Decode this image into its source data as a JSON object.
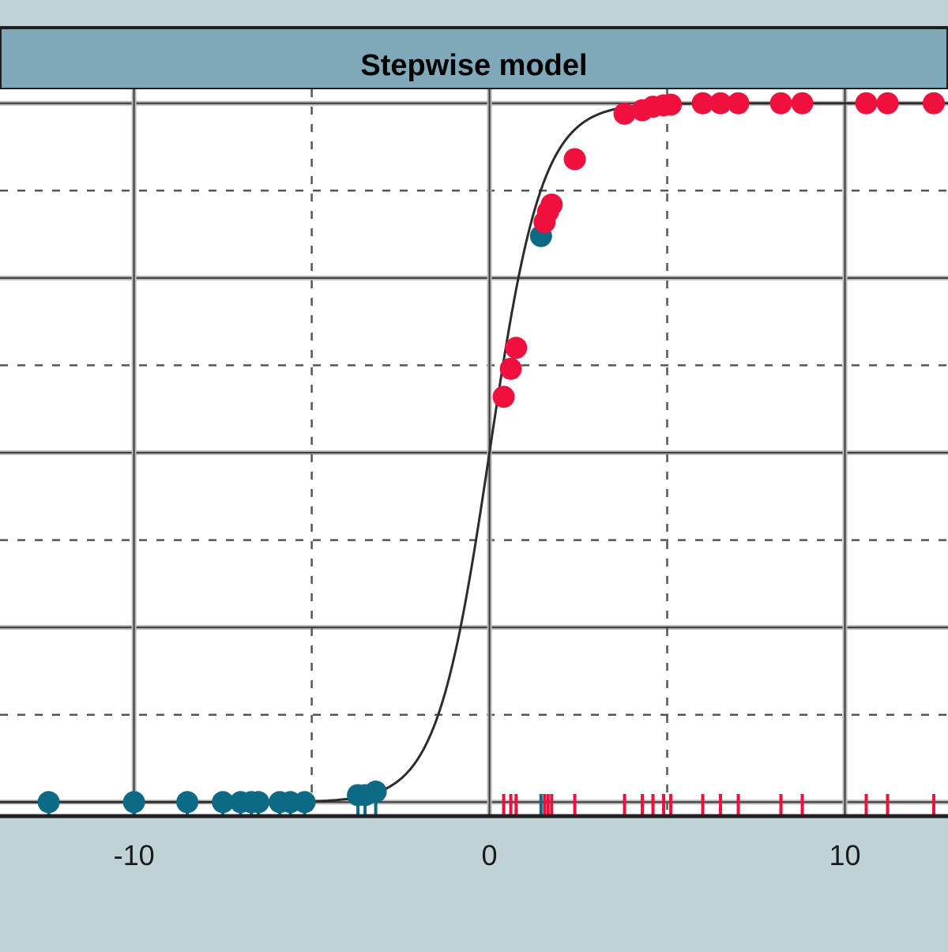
{
  "chart_data": {
    "type": "scatter",
    "title": "Stepwise model",
    "xlabel": "",
    "ylabel": "",
    "xlim": [
      -13.77,
      12.9
    ],
    "ylim": [
      -0.02,
      1.02
    ],
    "x_ticks": [
      -10,
      0,
      10
    ],
    "x_tick_labels": [
      "-10",
      "0",
      "10"
    ],
    "x_minor_gridlines": [
      -5,
      5
    ],
    "y_major_gridlines": [
      0,
      0.25,
      0.5,
      0.75,
      1
    ],
    "y_minor_gridlines": [
      0.125,
      0.375,
      0.625,
      0.875
    ],
    "grid": true,
    "legend": "none",
    "colors": {
      "class_0": "#0c6a84",
      "class_1": "#f0103e",
      "curve": "#2c2c2c",
      "title_bar": "#7fa9b8",
      "background": "#bfd3d7"
    },
    "curve": {
      "name": "",
      "function": "logistic",
      "midpoint": 0,
      "slope": 1.35
    },
    "series": [
      {
        "name": "",
        "color": "#0c6a84",
        "points": [
          {
            "x": -12.4,
            "y": 0.0
          },
          {
            "x": -10.0,
            "y": 0.0
          },
          {
            "x": -8.5,
            "y": 0.0
          },
          {
            "x": -7.5,
            "y": 0.0
          },
          {
            "x": -7.0,
            "y": 0.0
          },
          {
            "x": -6.7,
            "y": 0.0
          },
          {
            "x": -6.5,
            "y": 0.0
          },
          {
            "x": -5.9,
            "y": 0.0
          },
          {
            "x": -5.6,
            "y": 0.0
          },
          {
            "x": -5.2,
            "y": 0.0
          },
          {
            "x": -3.7,
            "y": 0.01
          },
          {
            "x": -3.5,
            "y": 0.01
          },
          {
            "x": -3.2,
            "y": 0.015
          },
          {
            "x": 1.45,
            "y": 0.81
          }
        ]
      },
      {
        "name": "",
        "color": "#f0103e",
        "points": [
          {
            "x": 0.4,
            "y": 0.58
          },
          {
            "x": 0.6,
            "y": 0.62
          },
          {
            "x": 0.75,
            "y": 0.65
          },
          {
            "x": 1.55,
            "y": 0.83
          },
          {
            "x": 1.65,
            "y": 0.845
          },
          {
            "x": 1.75,
            "y": 0.855
          },
          {
            "x": 2.4,
            "y": 0.92
          },
          {
            "x": 3.8,
            "y": 0.985
          },
          {
            "x": 4.3,
            "y": 0.99
          },
          {
            "x": 4.6,
            "y": 0.995
          },
          {
            "x": 4.9,
            "y": 0.997
          },
          {
            "x": 5.1,
            "y": 0.998
          },
          {
            "x": 6.0,
            "y": 1.0
          },
          {
            "x": 6.5,
            "y": 1.0
          },
          {
            "x": 7.0,
            "y": 1.0
          },
          {
            "x": 8.2,
            "y": 1.0
          },
          {
            "x": 8.8,
            "y": 1.0
          },
          {
            "x": 10.6,
            "y": 1.0
          },
          {
            "x": 11.2,
            "y": 1.0
          },
          {
            "x": 12.5,
            "y": 1.0
          }
        ]
      }
    ]
  }
}
